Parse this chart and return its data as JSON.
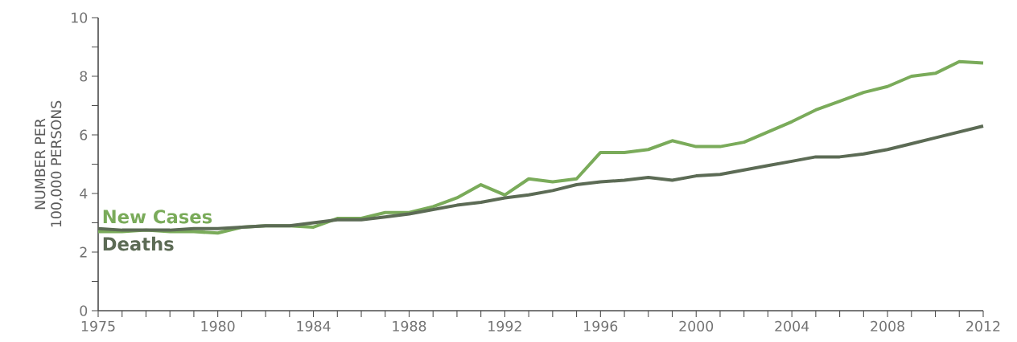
{
  "chart_data": {
    "type": "line",
    "ylabel": "NUMBER PER 100,000 PERSONS",
    "x": [
      1975,
      1976,
      1977,
      1978,
      1979,
      1980,
      1981,
      1982,
      1983,
      1984,
      1985,
      1986,
      1987,
      1988,
      1989,
      1990,
      1991,
      1992,
      1993,
      1994,
      1995,
      1996,
      1997,
      1998,
      1999,
      2000,
      2001,
      2002,
      2003,
      2004,
      2005,
      2006,
      2007,
      2008,
      2009,
      2010,
      2011,
      2012
    ],
    "series": [
      {
        "name": "New Cases",
        "color": "#7aab5a",
        "values": [
          2.7,
          2.7,
          2.75,
          2.7,
          2.7,
          2.65,
          2.85,
          2.9,
          2.9,
          2.85,
          3.15,
          3.15,
          3.35,
          3.35,
          3.55,
          3.85,
          4.3,
          3.95,
          4.5,
          4.4,
          4.5,
          5.4,
          5.4,
          5.5,
          5.8,
          5.6,
          5.6,
          5.75,
          6.1,
          6.45,
          6.85,
          7.15,
          7.45,
          7.65,
          8.0,
          8.1,
          8.5,
          8.45
        ]
      },
      {
        "name": "Deaths",
        "color": "#5c6b55",
        "values": [
          2.8,
          2.75,
          2.75,
          2.75,
          2.8,
          2.8,
          2.85,
          2.9,
          2.9,
          3.0,
          3.1,
          3.1,
          3.2,
          3.3,
          3.45,
          3.6,
          3.7,
          3.85,
          3.95,
          4.1,
          4.3,
          4.4,
          4.45,
          4.55,
          4.45,
          4.6,
          4.65,
          4.8,
          4.95,
          5.1,
          5.25,
          5.25,
          5.35,
          5.5,
          5.7,
          5.9,
          6.1,
          6.3
        ]
      }
    ],
    "xlim": [
      1975,
      2012
    ],
    "xticks": [
      1975,
      {
        "value": 1976,
        "label": null
      },
      {
        "value": 1977,
        "label": null
      },
      {
        "value": 1978,
        "label": null
      },
      {
        "value": 1979,
        "label": null
      },
      1980,
      {
        "value": 1981,
        "label": null
      },
      {
        "value": 1982,
        "label": null
      },
      {
        "value": 1983,
        "label": null
      },
      1984,
      {
        "value": 1985,
        "label": null
      },
      {
        "value": 1986,
        "label": null
      },
      {
        "value": 1987,
        "label": null
      },
      1988,
      {
        "value": 1989,
        "label": null
      },
      {
        "value": 1990,
        "label": null
      },
      {
        "value": 1991,
        "label": null
      },
      1992,
      {
        "value": 1993,
        "label": null
      },
      {
        "value": 1994,
        "label": null
      },
      {
        "value": 1995,
        "label": null
      },
      1996,
      {
        "value": 1997,
        "label": null
      },
      {
        "value": 1998,
        "label": null
      },
      {
        "value": 1999,
        "label": null
      },
      2000,
      {
        "value": 2001,
        "label": null
      },
      {
        "value": 2002,
        "label": null
      },
      {
        "value": 2003,
        "label": null
      },
      2004,
      {
        "value": 2005,
        "label": null
      },
      {
        "value": 2006,
        "label": null
      },
      {
        "value": 2007,
        "label": null
      },
      2008,
      {
        "value": 2009,
        "label": null
      },
      {
        "value": 2010,
        "label": null
      },
      {
        "value": 2011,
        "label": null
      },
      2012
    ],
    "ylim": [
      0,
      10
    ],
    "yticks": [
      0,
      {
        "value": 1,
        "label": null
      },
      2,
      {
        "value": 3,
        "label": null
      },
      4,
      {
        "value": 5,
        "label": null
      },
      6,
      {
        "value": 7,
        "label": null
      },
      8,
      {
        "value": 9,
        "label": null
      },
      10
    ],
    "grid": false,
    "legend": false,
    "marker": "none",
    "line_style": "solid"
  }
}
